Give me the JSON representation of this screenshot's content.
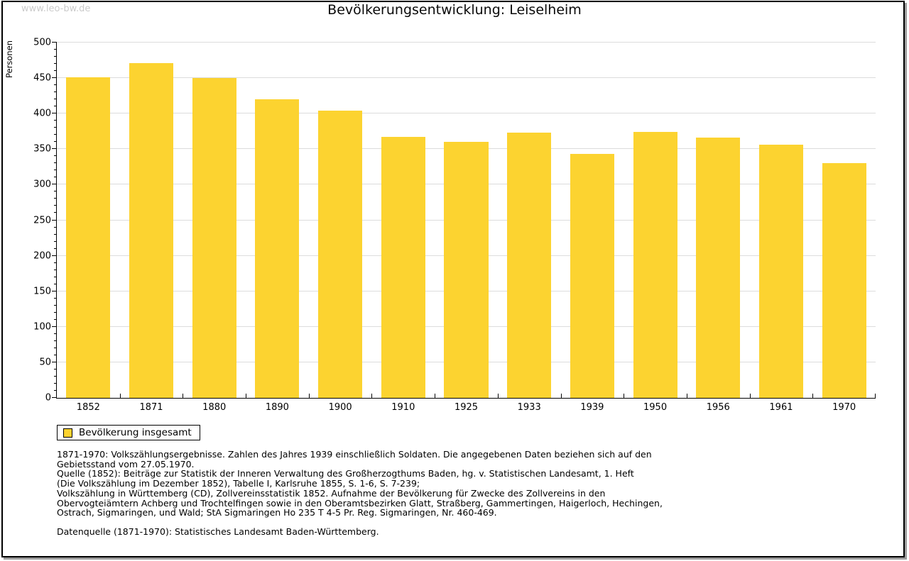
{
  "watermark": "www.leo-bw.de",
  "title": "Bevölkerungsentwicklung: Leiselheim",
  "colors": {
    "bar": "#FCD330",
    "grid": "#DCDCDC",
    "axis": "#000000",
    "watermark": "#CBCBCB",
    "frame_shadow": "#9C9C9C"
  },
  "chart_data": {
    "type": "bar",
    "title": "Bevölkerungsentwicklung: Leiselheim",
    "categories": [
      "1852",
      "1871",
      "1880",
      "1890",
      "1900",
      "1910",
      "1925",
      "1933",
      "1939",
      "1950",
      "1956",
      "1961",
      "1970"
    ],
    "series": [
      {
        "name": "Bevölkerung insgesamt",
        "values": [
          451,
          471,
          450,
          420,
          404,
          367,
          360,
          373,
          343,
          374,
          366,
          356,
          330
        ]
      }
    ],
    "xlabel": "",
    "ylabel": "Personen",
    "ylim": [
      0,
      500
    ],
    "yticks": [
      0,
      50,
      100,
      150,
      200,
      250,
      300,
      350,
      400,
      450,
      500
    ],
    "ytick_minor_step": 10,
    "grid": "horizontal-major",
    "legend_position": "bottom-left",
    "bar_color": "#FCD330"
  },
  "legend": {
    "label": "Bevölkerung insgesamt"
  },
  "footnote": {
    "lines": [
      "1871-1970: Volkszählungsergebnisse. Zahlen des Jahres 1939 einschließlich Soldaten. Die angegebenen Daten beziehen sich auf den",
      "Gebietsstand vom 27.05.1970.",
      "Quelle (1852): Beiträge zur Statistik der Inneren Verwaltung des Großherzogthums Baden, hg. v. Statistischen Landesamt, 1. Heft",
      "(Die Volkszählung im Dezember 1852), Tabelle I, Karlsruhe 1855, S. 1-6, S. 7-239;",
      "Volkszählung in Württemberg (CD), Zollvereinsstatistik 1852. Aufnahme der Bevölkerung für Zwecke des Zollvereins in den",
      "Obervogteiämtern Achberg und Trochtelfingen sowie in den Oberamtsbezirken Glatt, Straßberg, Gammertingen, Haigerloch, Hechingen,",
      "Ostrach, Sigmaringen, und Wald; StA Sigmaringen Ho 235 T 4-5 Pr. Reg. Sigmaringen, Nr. 460-469."
    ],
    "datasource": "Datenquelle (1871-1970): Statistisches Landesamt Baden-Württemberg."
  }
}
